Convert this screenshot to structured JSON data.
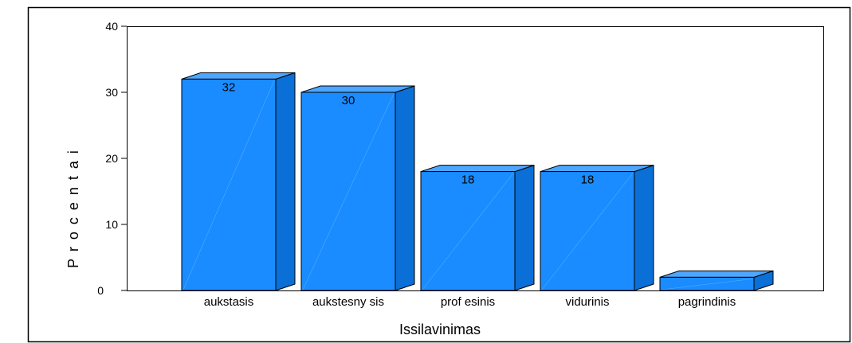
{
  "chart_data": {
    "type": "bar",
    "style": "3d",
    "categories": [
      "aukstasis",
      "aukstesnysis",
      "profesinis",
      "vidurinis",
      "pagrindinis"
    ],
    "values": [
      32,
      30,
      18,
      18,
      2
    ],
    "data_labels": [
      "32",
      "30",
      "18",
      "18",
      ""
    ],
    "display_labels": [
      "aukstasis",
      "aukstesny sis",
      "prof esinis",
      "vidurinis",
      "pagrindinis"
    ],
    "xlabel": "Issilavinimas",
    "ylabel": "P r o c e n t a i",
    "ylim": [
      0,
      40
    ],
    "yticks": [
      "0",
      "10",
      "20",
      "30",
      "40"
    ],
    "grid": false,
    "legend": "none",
    "colors": {
      "bar_front": "#1a8cff",
      "bar_top": "#4da6ff",
      "bar_side": "#0a6fd6",
      "outline": "#000000",
      "border": "#000000"
    }
  }
}
